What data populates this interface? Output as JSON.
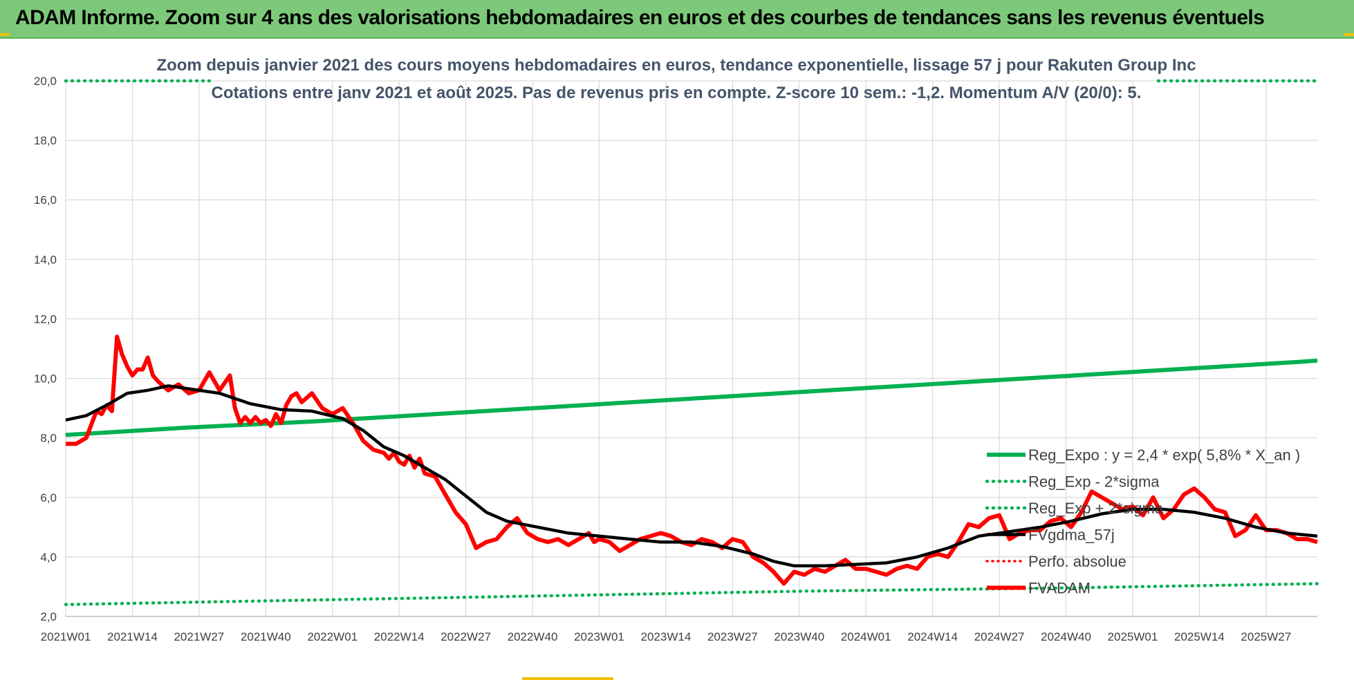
{
  "banner": {
    "title": "ADAM Informe. Zoom sur 4 ans des valorisations hebdomadaires en euros et des courbes de tendances sans les revenus éventuels"
  },
  "colors": {
    "banner": "#7dc97a",
    "reg_expo": "#00b050",
    "fvadam": "#ff0000",
    "fvgdma": "#000000",
    "grid": "#d9d9d9",
    "subtitle": "#44546a"
  },
  "chart_data": {
    "type": "line",
    "title": "Zoom depuis janvier 2021 des cours moyens hebdomadaires en euros, tendance exponentielle, lissage 57 j pour Rakuten Group Inc",
    "subtitle": "Cotations entre janv 2021 et août 2025.  Pas de revenus pris en compte. Z-score 10 sem.: -1,2. Momentum A/V (20/0): 5.",
    "ylim": [
      2,
      20
    ],
    "y_ticks": [
      "2,0",
      "4,0",
      "6,0",
      "8,0",
      "10,0",
      "12,0",
      "14,0",
      "16,0",
      "18,0",
      "20,0"
    ],
    "x_ticks": [
      "2021W01",
      "2021W14",
      "2021W27",
      "2021W40",
      "2022W01",
      "2022W14",
      "2022W27",
      "2022W40",
      "2023W01",
      "2023W14",
      "2023W27",
      "2023W40",
      "2024W01",
      "2024W14",
      "2024W27",
      "2024W40",
      "2025W01",
      "2025W14",
      "2025W27"
    ],
    "grid": "vertical and horizontal",
    "legend_position": "bottom-right inside plot",
    "series": [
      {
        "name": "Reg_Expo : y = 2,4 * exp( 5,8% *  X_an )",
        "style": "solid-thick-green",
        "points": [
          [
            0,
            8.1
          ],
          [
            24,
            8.35
          ],
          [
            48,
            8.55
          ],
          [
            72,
            8.8
          ],
          [
            96,
            9.05
          ],
          [
            120,
            9.3
          ],
          [
            144,
            9.55
          ],
          [
            168,
            9.8
          ],
          [
            192,
            10.05
          ],
          [
            216,
            10.3
          ],
          [
            240,
            10.55
          ],
          [
            244,
            10.6
          ]
        ]
      },
      {
        "name": "Reg_Exp - 2*sigma",
        "style": "dotted-green",
        "points": [
          [
            0,
            2.4
          ],
          [
            48,
            2.55
          ],
          [
            96,
            2.7
          ],
          [
            144,
            2.85
          ],
          [
            192,
            2.95
          ],
          [
            244,
            3.1
          ]
        ]
      },
      {
        "name": "Reg_Exp + 2*sigma",
        "style": "dotted-green",
        "points": [
          [
            0,
            20.0
          ],
          [
            28,
            20.0
          ],
          null,
          [
            213,
            20.0
          ],
          [
            244,
            20.0
          ]
        ]
      },
      {
        "name": "FVgdma_57j",
        "style": "solid-black",
        "points": [
          [
            0,
            8.6
          ],
          [
            4,
            8.75
          ],
          [
            8,
            9.1
          ],
          [
            12,
            9.5
          ],
          [
            16,
            9.6
          ],
          [
            20,
            9.75
          ],
          [
            24,
            9.65
          ],
          [
            30,
            9.5
          ],
          [
            36,
            9.15
          ],
          [
            42,
            8.95
          ],
          [
            48,
            8.9
          ],
          [
            54,
            8.65
          ],
          [
            58,
            8.25
          ],
          [
            62,
            7.7
          ],
          [
            66,
            7.4
          ],
          [
            70,
            7.0
          ],
          [
            74,
            6.6
          ],
          [
            78,
            6.05
          ],
          [
            82,
            5.5
          ],
          [
            86,
            5.2
          ],
          [
            92,
            5.0
          ],
          [
            98,
            4.8
          ],
          [
            104,
            4.7
          ],
          [
            110,
            4.6
          ],
          [
            116,
            4.5
          ],
          [
            122,
            4.5
          ],
          [
            128,
            4.35
          ],
          [
            134,
            4.1
          ],
          [
            138,
            3.85
          ],
          [
            142,
            3.7
          ],
          [
            148,
            3.7
          ],
          [
            154,
            3.75
          ],
          [
            160,
            3.8
          ],
          [
            166,
            4.0
          ],
          [
            172,
            4.3
          ],
          [
            178,
            4.7
          ],
          [
            184,
            4.85
          ],
          [
            190,
            5.0
          ],
          [
            196,
            5.2
          ],
          [
            202,
            5.45
          ],
          [
            208,
            5.6
          ],
          [
            214,
            5.6
          ],
          [
            220,
            5.5
          ],
          [
            226,
            5.3
          ],
          [
            232,
            5.0
          ],
          [
            238,
            4.8
          ],
          [
            244,
            4.7
          ]
        ]
      },
      {
        "name": "Perfo. absolue",
        "style": "dotted-red",
        "points": []
      },
      {
        "name": "FVADAM",
        "style": "solid-thick-red",
        "points": [
          [
            0,
            7.8
          ],
          [
            2,
            7.8
          ],
          [
            4,
            8.0
          ],
          [
            6,
            8.9
          ],
          [
            7,
            8.8
          ],
          [
            8,
            9.1
          ],
          [
            9,
            8.9
          ],
          [
            10,
            11.4
          ],
          [
            11,
            10.8
          ],
          [
            12,
            10.4
          ],
          [
            13,
            10.1
          ],
          [
            14,
            10.3
          ],
          [
            15,
            10.3
          ],
          [
            16,
            10.7
          ],
          [
            17,
            10.1
          ],
          [
            18,
            9.9
          ],
          [
            20,
            9.6
          ],
          [
            22,
            9.8
          ],
          [
            24,
            9.5
          ],
          [
            26,
            9.6
          ],
          [
            28,
            10.2
          ],
          [
            30,
            9.6
          ],
          [
            32,
            10.1
          ],
          [
            33,
            9.0
          ],
          [
            34,
            8.5
          ],
          [
            35,
            8.7
          ],
          [
            36,
            8.5
          ],
          [
            37,
            8.7
          ],
          [
            38,
            8.5
          ],
          [
            39,
            8.6
          ],
          [
            40,
            8.4
          ],
          [
            41,
            8.8
          ],
          [
            42,
            8.5
          ],
          [
            43,
            9.1
          ],
          [
            44,
            9.4
          ],
          [
            45,
            9.5
          ],
          [
            46,
            9.2
          ],
          [
            48,
            9.5
          ],
          [
            50,
            9.0
          ],
          [
            52,
            8.8
          ],
          [
            54,
            9.0
          ],
          [
            56,
            8.5
          ],
          [
            58,
            7.9
          ],
          [
            60,
            7.6
          ],
          [
            62,
            7.5
          ],
          [
            63,
            7.3
          ],
          [
            64,
            7.5
          ],
          [
            65,
            7.2
          ],
          [
            66,
            7.1
          ],
          [
            67,
            7.4
          ],
          [
            68,
            7.0
          ],
          [
            69,
            7.3
          ],
          [
            70,
            6.8
          ],
          [
            72,
            6.7
          ],
          [
            74,
            6.1
          ],
          [
            76,
            5.5
          ],
          [
            78,
            5.1
          ],
          [
            80,
            4.3
          ],
          [
            82,
            4.5
          ],
          [
            84,
            4.6
          ],
          [
            86,
            5.0
          ],
          [
            88,
            5.3
          ],
          [
            90,
            4.8
          ],
          [
            92,
            4.6
          ],
          [
            94,
            4.5
          ],
          [
            96,
            4.6
          ],
          [
            98,
            4.4
          ],
          [
            100,
            4.6
          ],
          [
            102,
            4.8
          ],
          [
            103,
            4.5
          ],
          [
            104,
            4.6
          ],
          [
            106,
            4.5
          ],
          [
            108,
            4.2
          ],
          [
            110,
            4.4
          ],
          [
            112,
            4.6
          ],
          [
            114,
            4.7
          ],
          [
            116,
            4.8
          ],
          [
            118,
            4.7
          ],
          [
            120,
            4.5
          ],
          [
            122,
            4.4
          ],
          [
            124,
            4.6
          ],
          [
            126,
            4.5
          ],
          [
            128,
            4.3
          ],
          [
            130,
            4.6
          ],
          [
            132,
            4.5
          ],
          [
            134,
            4.0
          ],
          [
            136,
            3.8
          ],
          [
            138,
            3.5
          ],
          [
            140,
            3.1
          ],
          [
            142,
            3.5
          ],
          [
            144,
            3.4
          ],
          [
            146,
            3.6
          ],
          [
            148,
            3.5
          ],
          [
            150,
            3.7
          ],
          [
            152,
            3.9
          ],
          [
            154,
            3.6
          ],
          [
            156,
            3.6
          ],
          [
            158,
            3.5
          ],
          [
            160,
            3.4
          ],
          [
            162,
            3.6
          ],
          [
            164,
            3.7
          ],
          [
            166,
            3.6
          ],
          [
            168,
            4.0
          ],
          [
            170,
            4.1
          ],
          [
            172,
            4.0
          ],
          [
            174,
            4.5
          ],
          [
            176,
            5.1
          ],
          [
            178,
            5.0
          ],
          [
            180,
            5.3
          ],
          [
            182,
            5.4
          ],
          [
            184,
            4.6
          ],
          [
            186,
            4.8
          ],
          [
            188,
            4.9
          ],
          [
            190,
            4.9
          ],
          [
            192,
            5.2
          ],
          [
            194,
            5.3
          ],
          [
            196,
            5.0
          ],
          [
            198,
            5.5
          ],
          [
            200,
            6.2
          ],
          [
            202,
            6.0
          ],
          [
            204,
            5.8
          ],
          [
            206,
            5.6
          ],
          [
            208,
            5.7
          ],
          [
            210,
            5.4
          ],
          [
            212,
            6.0
          ],
          [
            214,
            5.3
          ],
          [
            216,
            5.6
          ],
          [
            218,
            6.1
          ],
          [
            220,
            6.3
          ],
          [
            222,
            6.0
          ],
          [
            224,
            5.6
          ],
          [
            226,
            5.5
          ],
          [
            228,
            4.7
          ],
          [
            230,
            4.9
          ],
          [
            232,
            5.4
          ],
          [
            234,
            4.9
          ],
          [
            236,
            4.9
          ],
          [
            238,
            4.8
          ],
          [
            240,
            4.6
          ],
          [
            242,
            4.6
          ],
          [
            244,
            4.5
          ]
        ]
      }
    ]
  }
}
